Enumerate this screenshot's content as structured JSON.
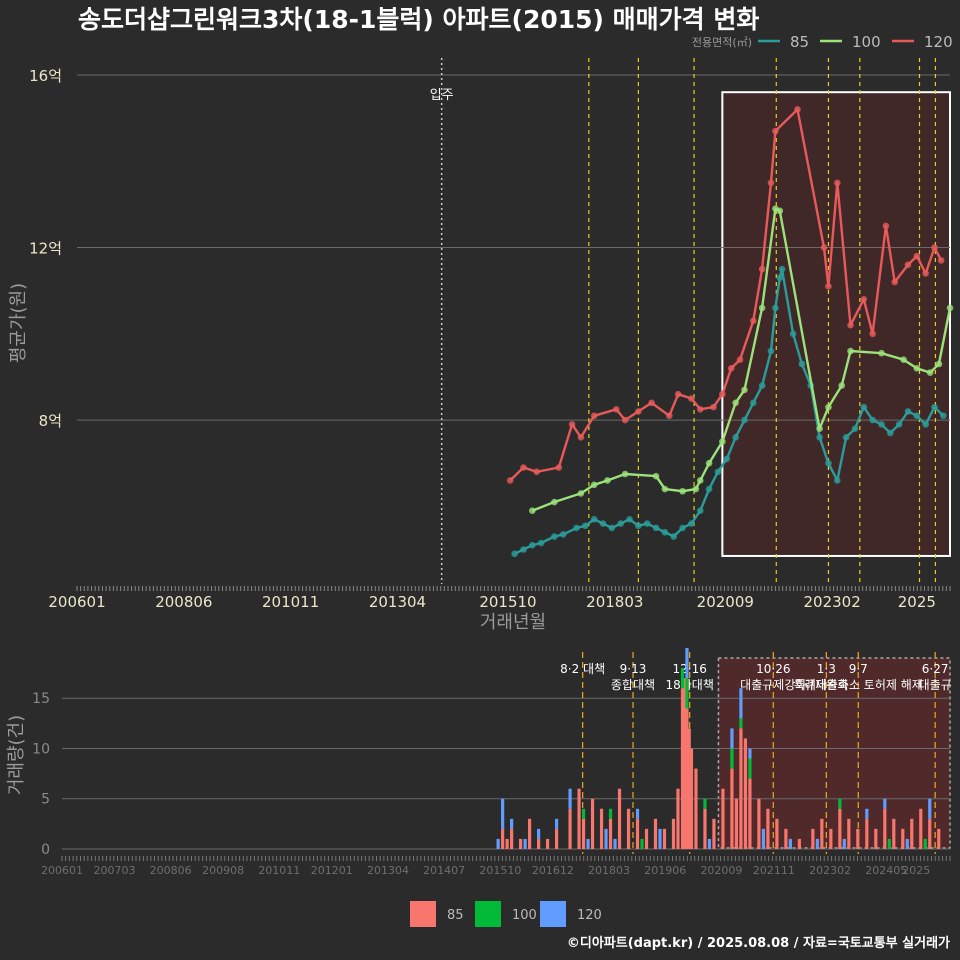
{
  "title": "송도더샵그린워크3차(18-1블럭) 아파트(2015) 매매가격 변화",
  "footer": "©디아파트(dapt.kr) / 2025.08.08 / 자료=국토교통부 실거래가",
  "colors": {
    "background": "#2b2b2b",
    "s85": "#2a9d9a",
    "s100": "#9be27a",
    "s120": "#e85a5a",
    "bar85": "#f8766d",
    "bar100": "#00ba38",
    "bar120": "#619cff",
    "policy_line": "#e6d21a",
    "policy_line_bottom": "#e0a020",
    "highlight_fill": "#4a2828"
  },
  "chart_data": [
    {
      "type": "line",
      "ylabel": "평균가(원)",
      "xlabel": "거래년월",
      "ylim": [
        4.2,
        16.3
      ],
      "y_ticks": [
        {
          "v": 8,
          "label": "8억"
        },
        {
          "v": 12,
          "label": "12억"
        },
        {
          "v": 16,
          "label": "16억"
        }
      ],
      "x_ticks": [
        "200601",
        "200806",
        "201011",
        "201304",
        "201510",
        "201803",
        "202009",
        "202302",
        "2025"
      ],
      "legend_title": "전용면적(㎡)",
      "legend_position": "top-right",
      "movein_label": "입주",
      "movein_date": 2014.25,
      "policy_dates": [
        2017.58,
        2018.7,
        2019.96,
        2021.82,
        2023.0,
        2023.71,
        2025.06,
        2025.42
      ],
      "highlight_range": {
        "x": [
          2020.6,
          2025.75
        ],
        "y": [
          4.85,
          15.6
        ]
      },
      "series": [
        {
          "name": "85",
          "points": [
            [
              2015.9,
              4.9
            ],
            [
              2016.1,
              5.0
            ],
            [
              2016.3,
              5.1
            ],
            [
              2016.5,
              5.15
            ],
            [
              2016.8,
              5.3
            ],
            [
              2017.0,
              5.35
            ],
            [
              2017.3,
              5.5
            ],
            [
              2017.5,
              5.55
            ],
            [
              2017.7,
              5.7
            ],
            [
              2017.9,
              5.6
            ],
            [
              2018.1,
              5.5
            ],
            [
              2018.3,
              5.6
            ],
            [
              2018.5,
              5.7
            ],
            [
              2018.7,
              5.55
            ],
            [
              2018.9,
              5.6
            ],
            [
              2019.1,
              5.5
            ],
            [
              2019.3,
              5.4
            ],
            [
              2019.5,
              5.3
            ],
            [
              2019.7,
              5.5
            ],
            [
              2019.9,
              5.6
            ],
            [
              2020.1,
              5.9
            ],
            [
              2020.3,
              6.4
            ],
            [
              2020.5,
              6.8
            ],
            [
              2020.7,
              7.1
            ],
            [
              2020.9,
              7.6
            ],
            [
              2021.1,
              8.0
            ],
            [
              2021.3,
              8.4
            ],
            [
              2021.5,
              8.8
            ],
            [
              2021.7,
              9.6
            ],
            [
              2021.8,
              10.6
            ],
            [
              2021.9,
              11.3
            ],
            [
              2021.95,
              11.5
            ],
            [
              2022.2,
              10.0
            ],
            [
              2022.4,
              9.3
            ],
            [
              2022.6,
              8.8
            ],
            [
              2022.8,
              7.6
            ],
            [
              2023.0,
              7.0
            ],
            [
              2023.2,
              6.6
            ],
            [
              2023.4,
              7.6
            ],
            [
              2023.6,
              7.8
            ],
            [
              2023.8,
              8.3
            ],
            [
              2024.0,
              8.0
            ],
            [
              2024.2,
              7.9
            ],
            [
              2024.4,
              7.7
            ],
            [
              2024.6,
              7.9
            ],
            [
              2024.8,
              8.2
            ],
            [
              2025.0,
              8.1
            ],
            [
              2025.2,
              7.9
            ],
            [
              2025.4,
              8.3
            ],
            [
              2025.6,
              8.1
            ]
          ]
        },
        {
          "name": "100",
          "points": [
            [
              2016.3,
              5.9
            ],
            [
              2016.8,
              6.1
            ],
            [
              2017.4,
              6.3
            ],
            [
              2017.7,
              6.5
            ],
            [
              2018.0,
              6.6
            ],
            [
              2018.4,
              6.75
            ],
            [
              2019.1,
              6.7
            ],
            [
              2019.3,
              6.4
            ],
            [
              2019.7,
              6.35
            ],
            [
              2020.0,
              6.4
            ],
            [
              2020.1,
              6.6
            ],
            [
              2020.3,
              7.0
            ],
            [
              2020.6,
              7.5
            ],
            [
              2020.9,
              8.4
            ],
            [
              2021.1,
              8.7
            ],
            [
              2021.5,
              10.6
            ],
            [
              2021.8,
              12.9
            ],
            [
              2021.9,
              12.85
            ],
            [
              2022.8,
              7.8
            ],
            [
              2023.0,
              8.3
            ],
            [
              2023.3,
              8.8
            ],
            [
              2023.5,
              9.6
            ],
            [
              2024.2,
              9.55
            ],
            [
              2024.7,
              9.4
            ],
            [
              2025.0,
              9.2
            ],
            [
              2025.3,
              9.1
            ],
            [
              2025.5,
              9.3
            ],
            [
              2025.75,
              10.6
            ]
          ]
        },
        {
          "name": "120",
          "points": [
            [
              2015.8,
              6.6
            ],
            [
              2016.1,
              6.9
            ],
            [
              2016.4,
              6.8
            ],
            [
              2016.9,
              6.9
            ],
            [
              2017.2,
              7.9
            ],
            [
              2017.4,
              7.6
            ],
            [
              2017.7,
              8.1
            ],
            [
              2018.2,
              8.25
            ],
            [
              2018.4,
              8.0
            ],
            [
              2018.7,
              8.2
            ],
            [
              2019.0,
              8.4
            ],
            [
              2019.4,
              8.1
            ],
            [
              2019.6,
              8.6
            ],
            [
              2019.9,
              8.5
            ],
            [
              2020.1,
              8.25
            ],
            [
              2020.4,
              8.3
            ],
            [
              2020.6,
              8.6
            ],
            [
              2020.8,
              9.2
            ],
            [
              2021.0,
              9.4
            ],
            [
              2021.3,
              10.3
            ],
            [
              2021.5,
              11.5
            ],
            [
              2021.7,
              13.5
            ],
            [
              2021.8,
              14.7
            ],
            [
              2022.3,
              15.2
            ],
            [
              2022.9,
              12.0
            ],
            [
              2023.0,
              11.1
            ],
            [
              2023.2,
              13.5
            ],
            [
              2023.5,
              10.2
            ],
            [
              2023.8,
              10.8
            ],
            [
              2024.0,
              10.0
            ],
            [
              2024.3,
              12.5
            ],
            [
              2024.5,
              11.2
            ],
            [
              2024.8,
              11.6
            ],
            [
              2025.0,
              11.8
            ],
            [
              2025.2,
              11.4
            ],
            [
              2025.4,
              12.0
            ],
            [
              2025.55,
              11.7
            ]
          ]
        }
      ]
    },
    {
      "type": "bar",
      "ylabel": "거래량(건)",
      "ylim": [
        -0.5,
        19.5
      ],
      "y_ticks": [
        0,
        5,
        10,
        15
      ],
      "x_ticks": [
        "200601",
        "200703",
        "200806",
        "200908",
        "201011",
        "201201",
        "201304",
        "201407",
        "201510",
        "201612",
        "201803",
        "201906",
        "202009",
        "202111",
        "202302",
        "202405",
        "2025"
      ],
      "highlight_range": {
        "x": [
          2020.6,
          2025.75
        ]
      },
      "legend": [
        "85",
        "100",
        "120"
      ],
      "legend_position": "bottom",
      "annotations": [
        {
          "x": 2017.58,
          "lines": [
            "8·2 대책"
          ]
        },
        {
          "x": 2018.7,
          "lines": [
            "9·13",
            "종합대책"
          ]
        },
        {
          "x": 2019.96,
          "lines": [
            "12·16",
            "18차대책"
          ]
        },
        {
          "x": 2021.82,
          "lines": [
            "10·26",
            "대출규제강화"
          ]
        },
        {
          "x": 2023.0,
          "lines": [
            "1·3",
            "규제완화"
          ]
        },
        {
          "x": 2023.71,
          "lines": [
            "9·7",
            "특례대출축소 토허제 해제"
          ]
        },
        {
          "x": 2025.42,
          "lines": [
            "6·27",
            "대출규"
          ]
        }
      ],
      "series": [
        {
          "name": "85",
          "values": [
            [
              2015.8,
              2
            ],
            [
              2015.9,
              1
            ],
            [
              2016.0,
              2
            ],
            [
              2016.2,
              1
            ],
            [
              2016.4,
              3
            ],
            [
              2016.6,
              1
            ],
            [
              2016.8,
              1
            ],
            [
              2017.0,
              2
            ],
            [
              2017.3,
              4
            ],
            [
              2017.5,
              6
            ],
            [
              2017.6,
              3
            ],
            [
              2017.8,
              5
            ],
            [
              2018.0,
              4
            ],
            [
              2018.2,
              3
            ],
            [
              2018.4,
              6
            ],
            [
              2018.6,
              4
            ],
            [
              2018.8,
              3
            ],
            [
              2019.0,
              2
            ],
            [
              2019.2,
              3
            ],
            [
              2019.4,
              2
            ],
            [
              2019.6,
              3
            ],
            [
              2019.7,
              6
            ],
            [
              2019.8,
              16
            ],
            [
              2019.85,
              17
            ],
            [
              2019.9,
              14
            ],
            [
              2019.95,
              12
            ],
            [
              2020.0,
              10
            ],
            [
              2020.1,
              8
            ],
            [
              2020.3,
              4
            ],
            [
              2020.5,
              3
            ],
            [
              2020.7,
              6
            ],
            [
              2020.9,
              8
            ],
            [
              2021.0,
              5
            ],
            [
              2021.1,
              12
            ],
            [
              2021.2,
              11
            ],
            [
              2021.3,
              7
            ],
            [
              2021.5,
              5
            ],
            [
              2021.7,
              4
            ],
            [
              2021.9,
              3
            ],
            [
              2022.1,
              2
            ],
            [
              2022.4,
              1
            ],
            [
              2022.7,
              2
            ],
            [
              2022.9,
              3
            ],
            [
              2023.1,
              2
            ],
            [
              2023.3,
              4
            ],
            [
              2023.5,
              3
            ],
            [
              2023.7,
              2
            ],
            [
              2023.9,
              3
            ],
            [
              2024.1,
              2
            ],
            [
              2024.3,
              4
            ],
            [
              2024.5,
              3
            ],
            [
              2024.7,
              2
            ],
            [
              2024.9,
              3
            ],
            [
              2025.1,
              4
            ],
            [
              2025.3,
              3
            ],
            [
              2025.5,
              2
            ]
          ]
        },
        {
          "name": "100",
          "values": [
            [
              2017.6,
              1
            ],
            [
              2018.2,
              1
            ],
            [
              2018.9,
              1
            ],
            [
              2019.8,
              2
            ],
            [
              2019.9,
              3
            ],
            [
              2020.3,
              1
            ],
            [
              2020.9,
              2
            ],
            [
              2021.1,
              1
            ],
            [
              2021.3,
              2
            ],
            [
              2023.3,
              1
            ],
            [
              2024.4,
              1
            ],
            [
              2025.2,
              1
            ]
          ]
        },
        {
          "name": "120",
          "values": [
            [
              2015.7,
              1
            ],
            [
              2015.8,
              3
            ],
            [
              2016.0,
              1
            ],
            [
              2016.3,
              1
            ],
            [
              2016.6,
              1
            ],
            [
              2017.0,
              1
            ],
            [
              2017.3,
              2
            ],
            [
              2017.7,
              1
            ],
            [
              2018.1,
              2
            ],
            [
              2018.3,
              1
            ],
            [
              2018.8,
              1
            ],
            [
              2019.3,
              2
            ],
            [
              2019.9,
              3
            ],
            [
              2020.4,
              1
            ],
            [
              2020.9,
              2
            ],
            [
              2021.1,
              3
            ],
            [
              2021.3,
              1
            ],
            [
              2021.6,
              2
            ],
            [
              2022.2,
              1
            ],
            [
              2022.8,
              1
            ],
            [
              2023.4,
              1
            ],
            [
              2023.9,
              1
            ],
            [
              2024.3,
              1
            ],
            [
              2024.8,
              1
            ],
            [
              2025.3,
              2
            ]
          ]
        }
      ]
    }
  ]
}
